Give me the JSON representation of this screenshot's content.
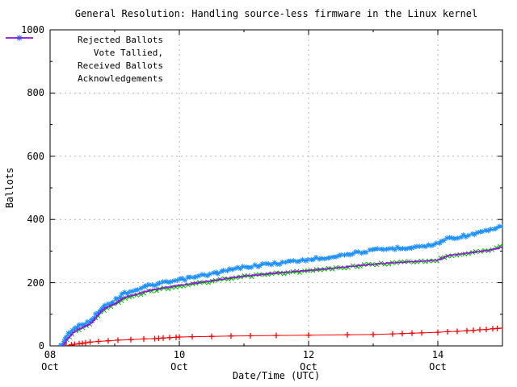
{
  "chart_data": {
    "type": "line",
    "title": "General Resolution: Handling source-less firmware in the Linux kernel",
    "xlabel": "Date/Time (UTC)",
    "ylabel": "Ballots",
    "ylim": [
      0,
      1000
    ],
    "grid": true,
    "legend_position": "top-left",
    "x_axis": {
      "unit": "days since 08 Oct 00:00 UTC",
      "range": [
        0,
        7
      ],
      "major_ticks": [
        {
          "t": 0,
          "day": "08",
          "month": "Oct"
        },
        {
          "t": 2,
          "day": "10",
          "month": "Oct"
        },
        {
          "t": 4,
          "day": "12",
          "month": "Oct"
        },
        {
          "t": 6,
          "day": "14",
          "month": "Oct"
        }
      ],
      "minor_ticks": [
        1,
        3,
        5
      ]
    },
    "y_axis": {
      "major_ticks": [
        0,
        200,
        400,
        600,
        800,
        1000
      ],
      "minor_ticks": [
        100,
        300,
        500,
        700,
        900
      ]
    },
    "series": [
      {
        "name": "Rejected Ballots",
        "color": "#ff0000",
        "marker": "plus",
        "dense": false,
        "step": false,
        "points": [
          [
            0.25,
            1
          ],
          [
            0.33,
            3
          ],
          [
            0.38,
            5
          ],
          [
            0.45,
            7
          ],
          [
            0.5,
            8
          ],
          [
            0.55,
            10
          ],
          [
            0.62,
            12
          ],
          [
            0.75,
            14
          ],
          [
            0.9,
            16
          ],
          [
            1.05,
            18
          ],
          [
            1.25,
            20
          ],
          [
            1.45,
            22
          ],
          [
            1.62,
            23
          ],
          [
            1.68,
            24
          ],
          [
            1.75,
            25
          ],
          [
            1.85,
            26
          ],
          [
            1.95,
            27
          ],
          [
            2.0,
            28
          ],
          [
            2.2,
            29
          ],
          [
            2.5,
            30
          ],
          [
            2.8,
            31
          ],
          [
            3.1,
            32
          ],
          [
            3.5,
            33
          ],
          [
            4.0,
            34
          ],
          [
            4.6,
            35
          ],
          [
            5.0,
            36
          ],
          [
            5.3,
            38
          ],
          [
            5.45,
            39
          ],
          [
            5.6,
            40
          ],
          [
            5.75,
            41
          ],
          [
            6.0,
            43
          ],
          [
            6.15,
            45
          ],
          [
            6.3,
            46
          ],
          [
            6.45,
            48
          ],
          [
            6.55,
            49
          ],
          [
            6.65,
            51
          ],
          [
            6.75,
            52
          ],
          [
            6.85,
            54
          ],
          [
            6.92,
            55
          ],
          [
            7.0,
            56
          ]
        ]
      },
      {
        "name": "Vote Tallied,",
        "color": "#00b400",
        "marker": "cross",
        "dense": true,
        "step": false,
        "points": [
          [
            0.18,
            0
          ],
          [
            0.25,
            18
          ],
          [
            0.3,
            28
          ],
          [
            0.35,
            40
          ],
          [
            0.42,
            50
          ],
          [
            0.5,
            57
          ],
          [
            0.58,
            64
          ],
          [
            0.66,
            76
          ],
          [
            0.72,
            92
          ],
          [
            0.78,
            106
          ],
          [
            0.84,
            116
          ],
          [
            0.92,
            124
          ],
          [
            1.0,
            130
          ],
          [
            1.06,
            140
          ],
          [
            1.12,
            148
          ],
          [
            1.2,
            154
          ],
          [
            1.32,
            160
          ],
          [
            1.45,
            169
          ],
          [
            1.58,
            175
          ],
          [
            1.72,
            180
          ],
          [
            1.88,
            185
          ],
          [
            2.0,
            189
          ],
          [
            2.2,
            195
          ],
          [
            2.4,
            201
          ],
          [
            2.6,
            207
          ],
          [
            2.8,
            213
          ],
          [
            3.0,
            219
          ],
          [
            3.25,
            224
          ],
          [
            3.5,
            229
          ],
          [
            3.75,
            233
          ],
          [
            4.0,
            237
          ],
          [
            4.3,
            243
          ],
          [
            4.6,
            250
          ],
          [
            4.9,
            256
          ],
          [
            5.2,
            261
          ],
          [
            5.5,
            265
          ],
          [
            5.8,
            268
          ],
          [
            6.0,
            271
          ],
          [
            6.1,
            281
          ],
          [
            6.2,
            287
          ],
          [
            6.4,
            292
          ],
          [
            6.6,
            298
          ],
          [
            6.8,
            304
          ],
          [
            6.9,
            308
          ],
          [
            7.0,
            318
          ]
        ]
      },
      {
        "name": "Received Ballots",
        "color": "#1e90ff",
        "marker": "asterisk",
        "dense": true,
        "step": false,
        "points": [
          [
            0.17,
            0
          ],
          [
            0.2,
            8
          ],
          [
            0.22,
            18
          ],
          [
            0.25,
            30
          ],
          [
            0.28,
            40
          ],
          [
            0.32,
            46
          ],
          [
            0.38,
            54
          ],
          [
            0.45,
            62
          ],
          [
            0.52,
            68
          ],
          [
            0.6,
            76
          ],
          [
            0.68,
            90
          ],
          [
            0.73,
            104
          ],
          [
            0.78,
            116
          ],
          [
            0.83,
            126
          ],
          [
            0.88,
            132
          ],
          [
            0.95,
            139
          ],
          [
            1.0,
            144
          ],
          [
            1.05,
            152
          ],
          [
            1.1,
            161
          ],
          [
            1.17,
            168
          ],
          [
            1.25,
            173
          ],
          [
            1.35,
            179
          ],
          [
            1.45,
            186
          ],
          [
            1.55,
            191
          ],
          [
            1.7,
            197
          ],
          [
            1.85,
            202
          ],
          [
            2.0,
            208
          ],
          [
            2.15,
            214
          ],
          [
            2.3,
            220
          ],
          [
            2.45,
            226
          ],
          [
            2.6,
            232
          ],
          [
            2.8,
            241
          ],
          [
            3.0,
            249
          ],
          [
            3.15,
            253
          ],
          [
            3.35,
            258
          ],
          [
            3.55,
            262
          ],
          [
            3.75,
            267
          ],
          [
            4.0,
            273
          ],
          [
            4.25,
            279
          ],
          [
            4.5,
            287
          ],
          [
            4.75,
            295
          ],
          [
            5.0,
            302
          ],
          [
            5.25,
            307
          ],
          [
            5.5,
            311
          ],
          [
            5.75,
            315
          ],
          [
            5.95,
            319
          ],
          [
            6.05,
            331
          ],
          [
            6.15,
            340
          ],
          [
            6.3,
            344
          ],
          [
            6.5,
            351
          ],
          [
            6.7,
            360
          ],
          [
            6.85,
            368
          ],
          [
            7.0,
            377
          ]
        ]
      },
      {
        "name": "Acknowledgements",
        "color": "#a000f0",
        "marker": "none",
        "dense": false,
        "step": true,
        "points": [
          [
            0.18,
            0
          ],
          [
            0.25,
            20
          ],
          [
            0.3,
            31
          ],
          [
            0.35,
            43
          ],
          [
            0.42,
            53
          ],
          [
            0.5,
            60
          ],
          [
            0.58,
            67
          ],
          [
            0.66,
            80
          ],
          [
            0.72,
            96
          ],
          [
            0.78,
            110
          ],
          [
            0.84,
            120
          ],
          [
            0.92,
            128
          ],
          [
            1.0,
            134
          ],
          [
            1.06,
            144
          ],
          [
            1.12,
            152
          ],
          [
            1.2,
            158
          ],
          [
            1.32,
            164
          ],
          [
            1.45,
            173
          ],
          [
            1.58,
            179
          ],
          [
            1.72,
            184
          ],
          [
            1.88,
            189
          ],
          [
            2.0,
            193
          ],
          [
            2.2,
            199
          ],
          [
            2.4,
            205
          ],
          [
            2.6,
            211
          ],
          [
            2.8,
            217
          ],
          [
            3.0,
            222
          ],
          [
            3.25,
            227
          ],
          [
            3.5,
            232
          ],
          [
            3.75,
            236
          ],
          [
            4.0,
            240
          ],
          [
            4.3,
            246
          ],
          [
            4.6,
            252
          ],
          [
            4.9,
            258
          ],
          [
            5.2,
            263
          ],
          [
            5.5,
            266
          ],
          [
            5.8,
            269
          ],
          [
            6.0,
            273
          ],
          [
            6.1,
            283
          ],
          [
            6.2,
            288
          ],
          [
            6.4,
            293
          ],
          [
            6.6,
            299
          ],
          [
            6.8,
            304
          ],
          [
            6.9,
            308
          ],
          [
            7.0,
            316
          ]
        ]
      }
    ],
    "style": {
      "grid_color": "#b4b4b4",
      "axis_color": "#000000",
      "background": "#ffffff"
    }
  },
  "legend": {
    "items": [
      {
        "label": "Rejected Ballots"
      },
      {
        "label": "Vote Tallied,"
      },
      {
        "label": "Received Ballots"
      },
      {
        "label": "Acknowledgements"
      }
    ]
  }
}
